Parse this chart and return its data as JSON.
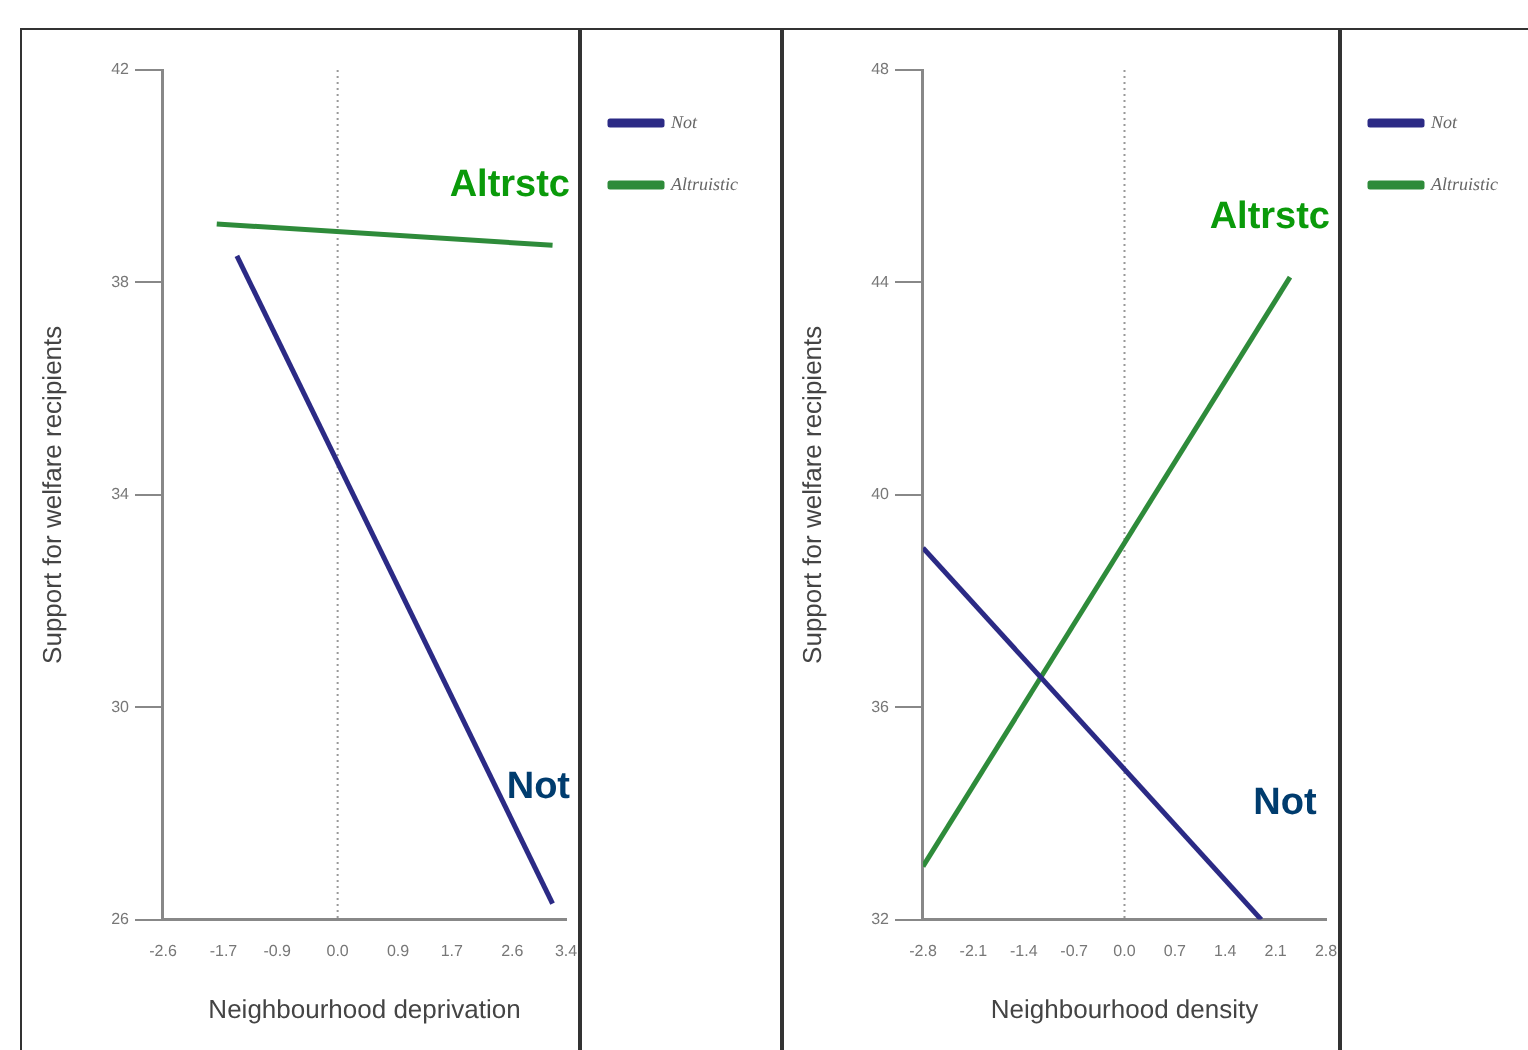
{
  "chart_data": [
    {
      "type": "line",
      "xlabel": "Neighbourhood deprivation",
      "ylabel": "Support for welfare recipients",
      "xlim": [
        -2.6,
        3.4
      ],
      "xticks": [
        -2.6,
        -1.7,
        -0.9,
        {
          "value": 0,
          "label": "0.0"
        },
        0.9,
        1.7,
        2.6,
        3.4
      ],
      "ylim": [
        26,
        42
      ],
      "yticks": [
        26,
        30,
        34,
        38,
        42
      ],
      "grid": false,
      "legend": "top right",
      "marker": "none",
      "line_style": "solid",
      "ref_lines": [
        {
          "axis": "x",
          "value": 0,
          "line_style": "dotted",
          "color": "#999999"
        }
      ],
      "series": [
        {
          "name": "Not",
          "color": "#2b2a85",
          "x": [
            -1.5,
            3.2
          ],
          "values": [
            38.5,
            26.3
          ]
        },
        {
          "name": "Altruistic",
          "color": "#2e8b3a",
          "x": [
            -1.8,
            3.2
          ],
          "values": [
            39.1,
            38.7
          ]
        }
      ],
      "annotations": [
        "Not",
        "Altrstc"
      ]
    },
    {
      "type": "line",
      "xlabel": "Neighbourhood density",
      "ylabel": "Support for welfare recipients",
      "xlim": [
        -2.8,
        2.8
      ],
      "xticks": [
        -2.8,
        -2.1,
        -1.4,
        -0.7,
        {
          "value": 0,
          "label": "0.0"
        },
        0.7,
        1.4,
        2.1,
        2.8
      ],
      "ylim": [
        32,
        48
      ],
      "yticks": [
        32,
        36,
        40,
        44,
        48
      ],
      "grid": false,
      "legend": "top right",
      "marker": "none",
      "line_style": "solid",
      "ref_lines": [
        {
          "axis": "x",
          "value": 0,
          "line_style": "dotted",
          "color": "#999999"
        }
      ],
      "series": [
        {
          "name": "Not",
          "color": "#2b2a85",
          "x": [
            -2.8,
            1.9
          ],
          "values": [
            39.0,
            32.0
          ]
        },
        {
          "name": "Altruistic",
          "color": "#2e8b3a",
          "x": [
            -2.8,
            2.3
          ],
          "values": [
            33.0,
            44.1
          ]
        }
      ],
      "annotations": [
        "Not",
        "Altrstc"
      ]
    }
  ]
}
